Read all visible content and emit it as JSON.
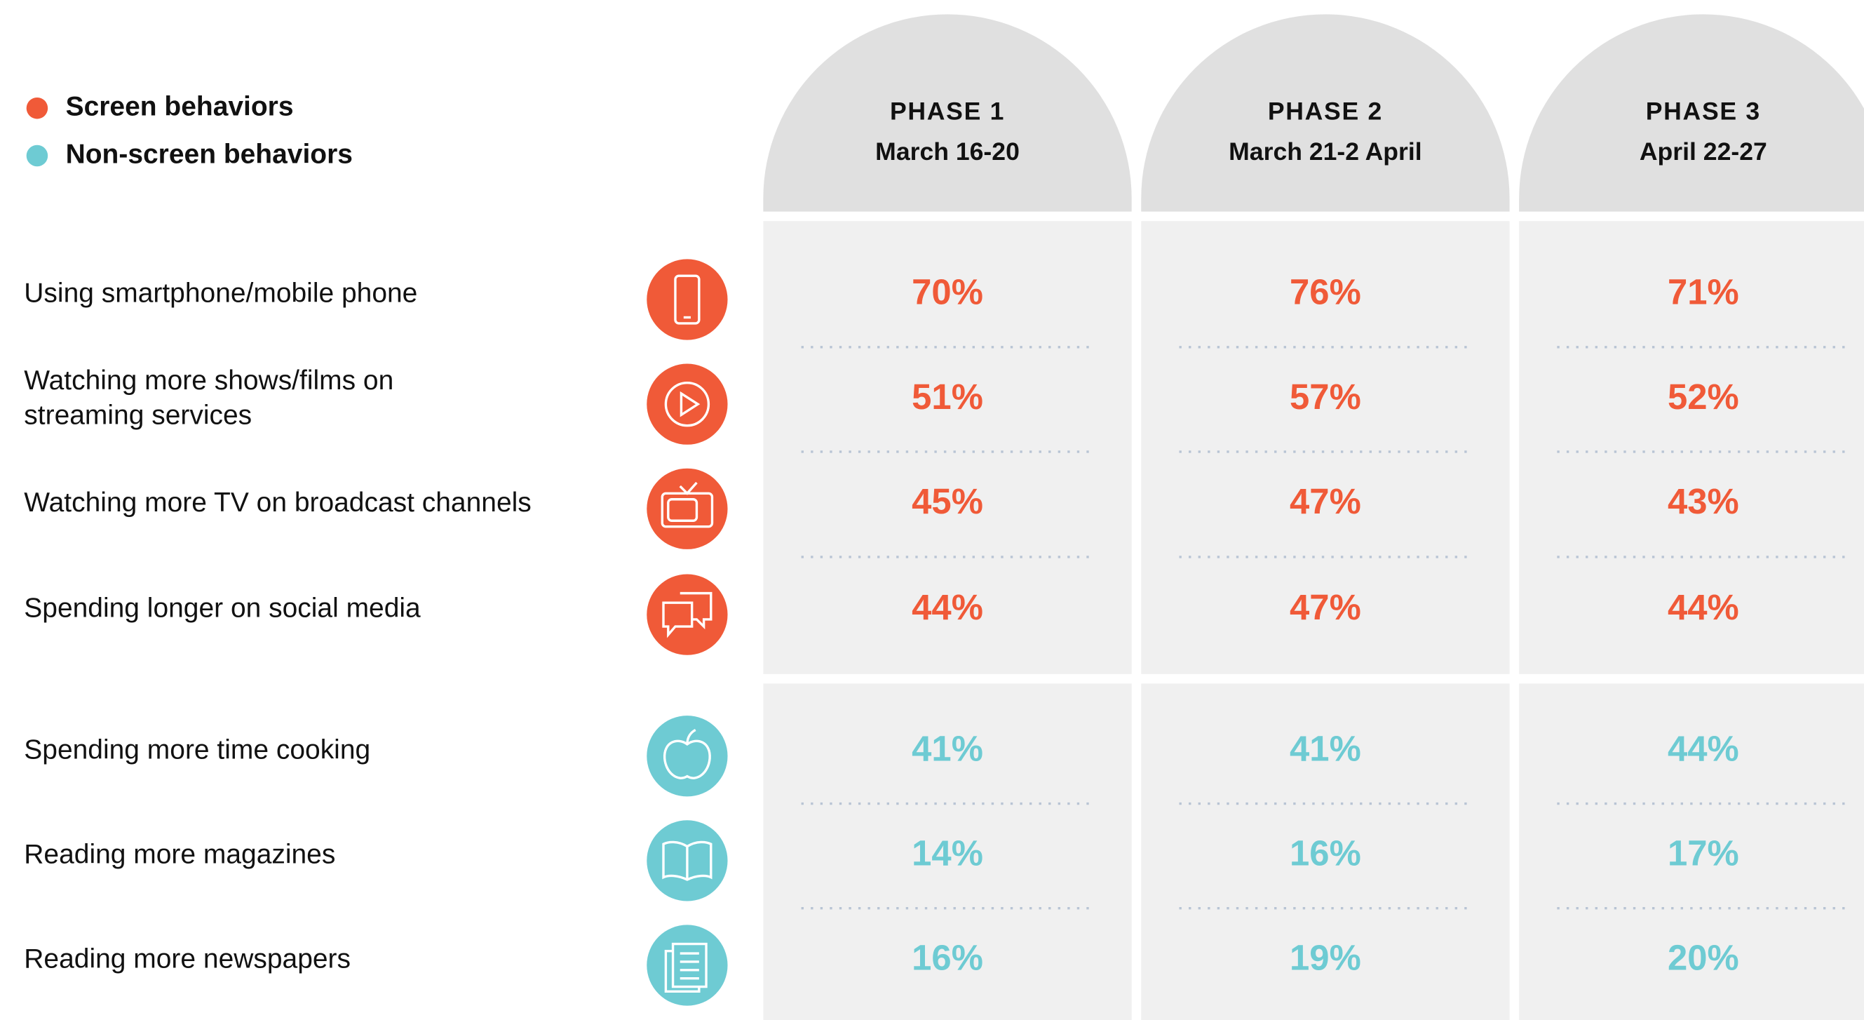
{
  "legend_sections": [
    {
      "name": "Screen behaviors",
      "color": "#f05a38",
      "rows": [
        {
          "lines": [
            "Using smartphone/mobile phone"
          ],
          "values": [
            "70%",
            "76%",
            "71%"
          ]
        },
        {
          "lines": [
            "Watching more shows/films on",
            "streaming services"
          ],
          "values": [
            "51%",
            "57%",
            "52%"
          ]
        },
        {
          "lines": [
            "Watching more TV on broadcast channels"
          ],
          "values": [
            "45%",
            "47%",
            "43%"
          ]
        },
        {
          "lines": [
            "Spending longer on social media"
          ],
          "values": [
            "44%",
            "47%",
            "44%"
          ]
        }
      ]
    },
    {
      "name": "Non-screen behaviors",
      "color": "#6ecbd3",
      "rows": [
        {
          "lines": [
            "Spending more time cooking"
          ],
          "values": [
            "41%",
            "41%",
            "44%"
          ]
        },
        {
          "lines": [
            "Reading more magazines"
          ],
          "values": [
            "14%",
            "16%",
            "17%"
          ]
        },
        {
          "lines": [
            "Reading more newspapers"
          ],
          "values": [
            "16%",
            "19%",
            "20%"
          ]
        }
      ]
    }
  ],
  "phases": [
    {
      "name": "PHASE 1",
      "dates": "March 16-20"
    },
    {
      "name": "PHASE 2",
      "dates": "March 21-2 April"
    },
    {
      "name": "PHASE 3",
      "dates": "April 22-27"
    }
  ]
}
